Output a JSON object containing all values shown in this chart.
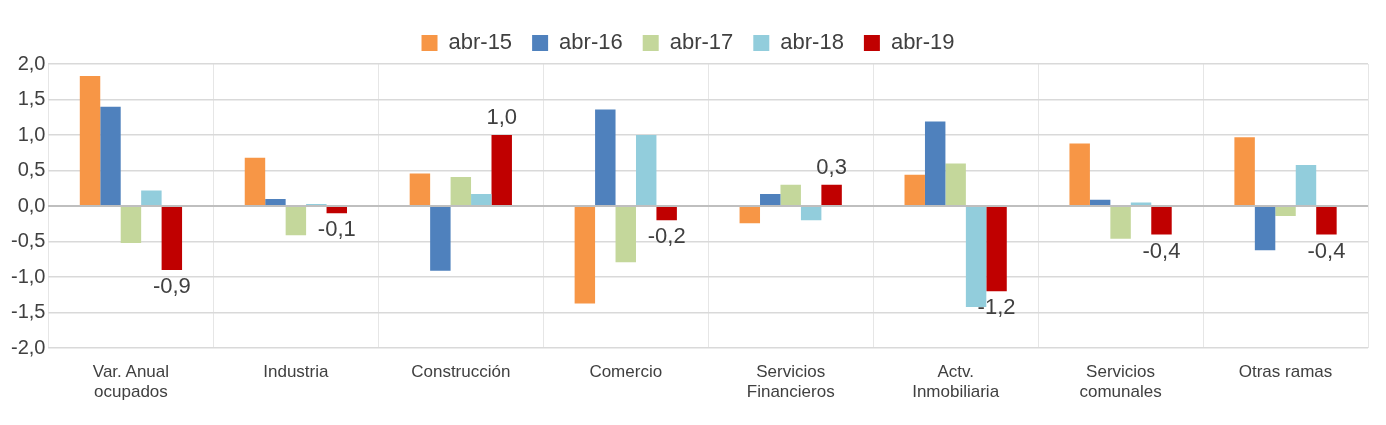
{
  "chart_data": {
    "type": "bar",
    "categories": [
      "Var. Anual ocupados",
      "Industria",
      "Construcción",
      "Comercio",
      "Servicios Financieros",
      "Actv. Inmobiliaria",
      "Servicios comunales",
      "Otras ramas"
    ],
    "series": [
      {
        "name": "abr-15",
        "color": "#f79646",
        "values": [
          1.83,
          0.68,
          0.46,
          -1.37,
          -0.24,
          0.44,
          0.88,
          0.97
        ]
      },
      {
        "name": "abr-16",
        "color": "#4f81bd",
        "values": [
          1.4,
          0.1,
          -0.91,
          1.36,
          0.17,
          1.19,
          0.09,
          -0.62
        ]
      },
      {
        "name": "abr-17",
        "color": "#c4d79b",
        "values": [
          -0.52,
          -0.41,
          0.41,
          -0.79,
          0.3,
          0.6,
          -0.46,
          -0.14
        ]
      },
      {
        "name": "abr-18",
        "color": "#92cddc",
        "values": [
          0.22,
          0.03,
          0.17,
          1.0,
          -0.2,
          -1.42,
          0.05,
          0.58
        ]
      },
      {
        "name": "abr-19",
        "color": "#c00000",
        "values": [
          -0.9,
          -0.1,
          1.0,
          -0.2,
          0.3,
          -1.2,
          -0.4,
          -0.4
        ],
        "value_labels": [
          "-0,9",
          "-0,1",
          "1,0",
          "-0,2",
          "0,3",
          "-1,2",
          "-0,4",
          "-0,4"
        ]
      }
    ],
    "ylim": [
      -2,
      2
    ],
    "yticks": [
      {
        "value": -2,
        "label": "-2,0"
      },
      {
        "value": -1.5,
        "label": "-1,5"
      },
      {
        "value": -1,
        "label": "-1,0"
      },
      {
        "value": -0.5,
        "label": "-0,5"
      },
      {
        "value": 0,
        "label": "0,0"
      },
      {
        "value": 0.5,
        "label": "0,5"
      },
      {
        "value": 1,
        "label": "1,0"
      },
      {
        "value": 1.5,
        "label": "1,5"
      },
      {
        "value": 2,
        "label": "2,0"
      }
    ],
    "grid": true,
    "legend": "top"
  }
}
